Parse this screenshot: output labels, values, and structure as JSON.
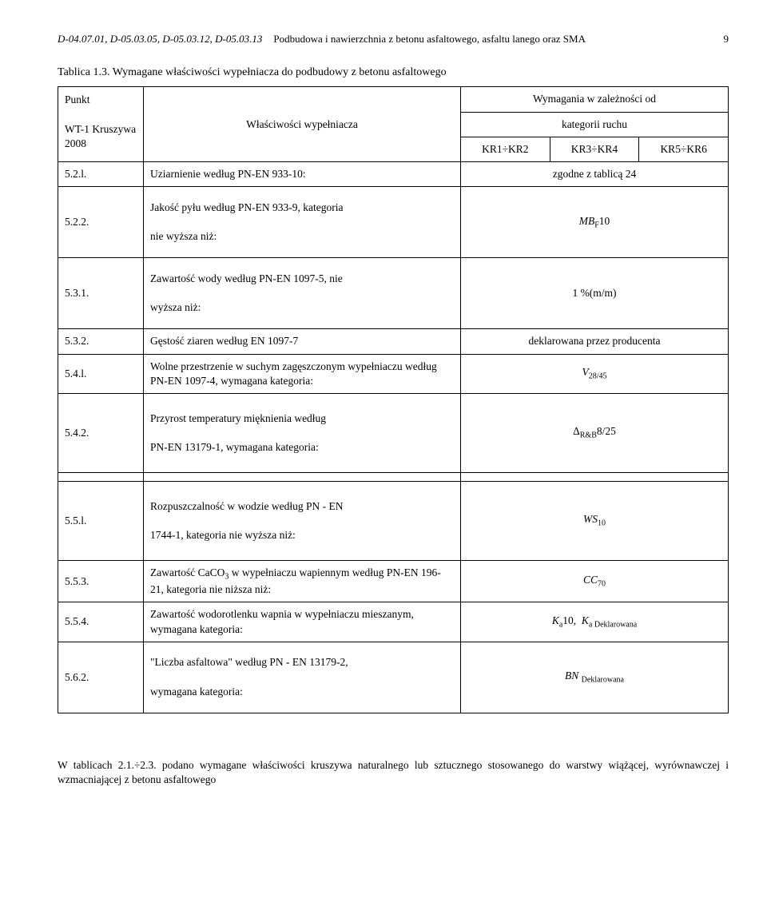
{
  "header": {
    "left": "D-04.07.01, D-05.03.05, D-05.03.12, D-05.03.13",
    "center": "Podbudowa i nawierzchnia z betonu asfaltowego, asfaltu lanego oraz SMA",
    "page": "9"
  },
  "table_title": "Tablica 1.3. Wymagane właściwości wypełniacza do podbudowy z betonu asfaltowego",
  "thead": {
    "punkt": "Punkt",
    "wt1": "WT-1 Kruszywa 2008",
    "prop": "Właściwości wypełniacza",
    "req": "Wymagania w zależności od",
    "kat": "kategorii ruchu",
    "kr12": "KR1÷KR2",
    "kr34": "KR3÷KR4",
    "kr56": "KR5÷KR6"
  },
  "rows": {
    "r521_n": "5.2.l.",
    "r521_p": "Uziarnienie według PN-EN 933-10:",
    "r521_v": "zgodne z tablicą 24",
    "r522_n": "5.2.2.",
    "r522_p": "Jakość pyłu według PN-EN 933-9, kategoria\n\nnie wyższa niż:",
    "r522_v": "MB_F10",
    "r531_n": "5.3.1.",
    "r531_p": "Zawartość wody według PN-EN 1097-5, nie\n\nwyższa niż:",
    "r531_v": "1 %(m/m)",
    "r532_n": "5.3.2.",
    "r532_p": "Gęstość ziaren według EN 1097-7",
    "r532_v": "deklarowana przez producenta",
    "r541_n": "5.4.l.",
    "r541_p": "Wolne przestrzenie w suchym zagęszczonym wypełniaczu według PN-EN 1097-4, wymagana kategoria:",
    "r541_v": "V_28/45",
    "r542_n": "5.4.2.",
    "r542_p": "Przyrost temperatury mięknienia według\n\nPN-EN 13179-1, wymagana kategoria:",
    "r542_v": "Δ_R&B 8/25",
    "r551_n": "5.5.l.",
    "r551_p": "Rozpuszczalność w wodzie według PN - EN\n\n1744-1, kategoria nie wyższa niż:",
    "r551_v": "WS_10",
    "r553_n": "5.5.3.",
    "r553_p": "Zawartość CaCO_3 w wypełniaczu wapiennym według PN-EN 196-21, kategoria nie niższa niż:",
    "r553_v": "CC_70",
    "r554_n": "5.5.4.",
    "r554_p": "Zawartość wodorotlenku wapnia w wypełniaczu mieszanym, wymagana kategoria:",
    "r554_v": "K_a10,  K_a Deklarowana",
    "r562_n": "5.6.2.",
    "r562_p": "\"Liczba asfaltowa\" według PN - EN 13179-2,\n\nwymagana kategoria:",
    "r562_v": "BN _Deklarowana"
  },
  "footer": "W tablicach 2.1.÷2.3. podano wymagane właściwości kruszywa naturalnego lub sztucznego stosowanego do warstwy wiążącej, wyrównawczej i wzmacniającej z betonu asfaltowego"
}
